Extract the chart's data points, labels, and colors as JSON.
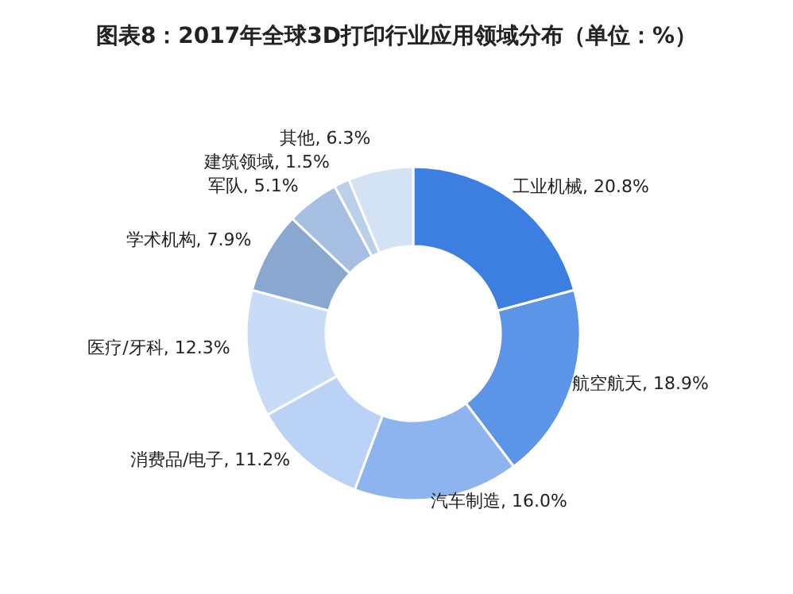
{
  "chart_data": {
    "type": "donut",
    "title": "图表8：2017年全球3D打印行业应用领域分布（单位：%）",
    "categories": [
      "工业机械",
      "航空航天",
      "汽车制造",
      "消费品/电子",
      "医疗/牙科",
      "学术机构",
      "军队",
      "建筑领域",
      "其他"
    ],
    "values": [
      20.8,
      18.9,
      16.0,
      11.2,
      12.3,
      7.9,
      5.1,
      1.5,
      6.3
    ],
    "colors": [
      "#3c7fe0",
      "#5c95e8",
      "#8db4ef",
      "#b9d2f6",
      "#c8dcf7",
      "#8aa8cf",
      "#a6bfe2",
      "#bccfea",
      "#d3e2f5"
    ],
    "value_labels": [
      "20.8%",
      "18.9%",
      "16.0%",
      "11.2%",
      "12.3%",
      "7.9%",
      "5.1%",
      "1.5%",
      "6.3%"
    ],
    "legend": false
  }
}
